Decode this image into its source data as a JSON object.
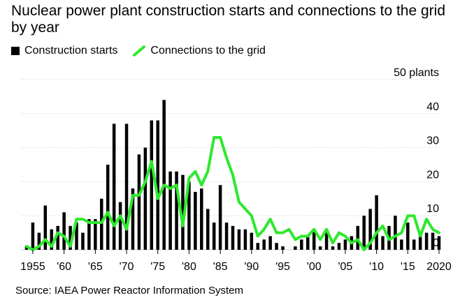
{
  "title": "Nuclear power plant construction starts and connections to the grid by year",
  "legend": {
    "bars": "Construction starts",
    "line": "Connections to the grid"
  },
  "source": "Source: IAEA Power Reactor Information System",
  "colors": {
    "bars": "#000000",
    "line": "#2ee82e",
    "grid": "#cfcfcf"
  },
  "chart_data": {
    "type": "bar",
    "x": [
      1954,
      1955,
      1956,
      1957,
      1958,
      1959,
      1960,
      1961,
      1962,
      1963,
      1964,
      1965,
      1966,
      1967,
      1968,
      1969,
      1970,
      1971,
      1972,
      1973,
      1974,
      1975,
      1976,
      1977,
      1978,
      1979,
      1980,
      1981,
      1982,
      1983,
      1984,
      1985,
      1986,
      1987,
      1988,
      1989,
      1990,
      1991,
      1992,
      1993,
      1994,
      1995,
      1996,
      1997,
      1998,
      1999,
      2000,
      2001,
      2002,
      2003,
      2004,
      2005,
      2006,
      2007,
      2008,
      2009,
      2010,
      2011,
      2012,
      2013,
      2014,
      2015,
      2016,
      2017,
      2018,
      2019,
      2020
    ],
    "series": [
      {
        "name": "Construction starts",
        "type": "bar",
        "values": [
          1,
          8,
          5,
          13,
          6,
          7,
          11,
          7,
          8,
          5,
          9,
          9,
          15,
          25,
          37,
          14,
          37,
          18,
          28,
          30,
          38,
          38,
          44,
          23,
          23,
          22,
          20,
          17,
          18,
          12,
          8,
          19,
          8,
          7,
          6,
          6,
          5,
          2,
          3,
          4,
          2,
          1,
          0,
          1,
          3,
          4,
          6,
          1,
          6,
          1,
          2,
          3,
          4,
          7,
          10,
          12,
          16,
          4,
          7,
          10,
          3,
          8,
          3,
          5,
          5,
          5,
          4
        ]
      },
      {
        "name": "Connections to the grid",
        "type": "line",
        "values": [
          1,
          0,
          1,
          3,
          1,
          5,
          4,
          1,
          9,
          9,
          8,
          8,
          8,
          11,
          7,
          10,
          6,
          16,
          16,
          20,
          26,
          15,
          19,
          18,
          19,
          7,
          21,
          23,
          19,
          23,
          33,
          33,
          27,
          22,
          14,
          12,
          10,
          4,
          6,
          9,
          5,
          5,
          6,
          3,
          4,
          4,
          6,
          3,
          6,
          2,
          5,
          4,
          2,
          3,
          0,
          2,
          5,
          7,
          3,
          4,
          5,
          10,
          10,
          4,
          9,
          6,
          5
        ]
      }
    ],
    "ylim": [
      0,
      50
    ],
    "yticks": [
      0,
      10,
      20,
      30,
      40,
      50
    ],
    "ytick_labels": [
      "0",
      "10",
      "20",
      "30",
      "40",
      "50 plants"
    ],
    "xticks": [
      1955,
      1960,
      1965,
      1970,
      1975,
      1980,
      1985,
      1990,
      1995,
      2000,
      2005,
      2010,
      2015,
      2020
    ],
    "xtick_labels": [
      "1955",
      "'60",
      "'65",
      "'70",
      "'75",
      "'80",
      "'85",
      "'90",
      "'95",
      "'00",
      "'05",
      "'10",
      "'15",
      "2020"
    ],
    "grid": true,
    "legend_position": "top-left"
  }
}
